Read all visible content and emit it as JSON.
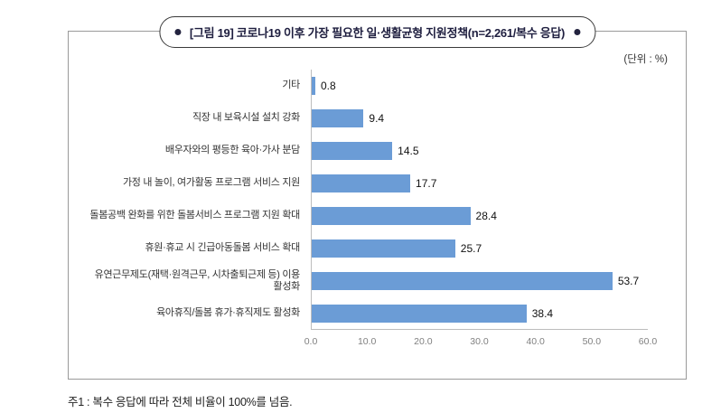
{
  "header": {
    "title": "[그림 19] 코로나19 이후 가장 필요한 일·생활균형 지원정책(n=2,261/복수 응답)",
    "unit_label": "(단위 : %)"
  },
  "footnote": "주1 : 복수 응답에 따라 전체 비율이 100%를 넘음.",
  "chart_data": {
    "type": "bar",
    "orientation": "horizontal",
    "title": "[그림 19] 코로나19 이후 가장 필요한 일·생활균형 지원정책(n=2,261/복수 응답)",
    "categories": [
      "기타",
      "직장 내 보육시설 설치 강화",
      "배우자와의 평등한 육아·가사 분담",
      "가정 내 놀이, 여가활동 프로그램 서비스 지원",
      "돌봄공백 완화를 위한 돌봄서비스 프로그램 지원 확대",
      "휴원·휴교 시 긴급아동돌봄 서비스 확대",
      "유연근무제도(재택·원격근무, 시차출퇴근제 등) 이용 활성화",
      "육아휴직/돌봄 휴가·휴직제도 활성화"
    ],
    "values": [
      0.8,
      9.4,
      14.5,
      17.7,
      28.4,
      25.7,
      53.7,
      38.4
    ],
    "xlim": [
      0,
      60
    ],
    "x_ticks": [
      "0.0",
      "10.0",
      "20.0",
      "30.0",
      "40.0",
      "50.0",
      "60.0"
    ],
    "xlabel": "",
    "ylabel": "",
    "grid": false,
    "legend": "none",
    "bar_color": "#6b9cd6"
  }
}
